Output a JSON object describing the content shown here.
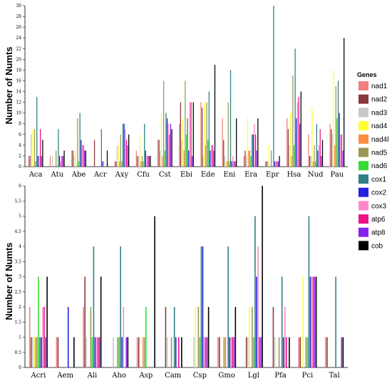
{
  "legend": {
    "title": "Genes",
    "genes": [
      {
        "name": "nad1",
        "color": "#f08080"
      },
      {
        "name": "nad2",
        "color": "#8b3a3a"
      },
      {
        "name": "nad3",
        "color": "#c8c8c8"
      },
      {
        "name": "nad4",
        "color": "#ffff33"
      },
      {
        "name": "nad4l",
        "color": "#ff8c40"
      },
      {
        "name": "nad5",
        "color": "#999955"
      },
      {
        "name": "nad6",
        "color": "#33dd33"
      },
      {
        "name": "cox1",
        "color": "#2f7f86"
      },
      {
        "name": "cox2",
        "color": "#2222dd"
      },
      {
        "name": "cox3",
        "color": "#ff88c8"
      },
      {
        "name": "atp6",
        "color": "#ee1188"
      },
      {
        "name": "atp8",
        "color": "#8822ee"
      },
      {
        "name": "cob",
        "color": "#000000"
      }
    ]
  },
  "chart_data": [
    {
      "type": "bar",
      "ylabel": "Number of Numts",
      "ylim": [
        0,
        30
      ],
      "yticks": [
        0,
        2,
        4,
        6,
        8,
        10,
        12,
        14,
        16,
        18,
        20,
        22,
        24,
        26,
        28,
        30
      ],
      "categories": [
        "Aca",
        "Atu",
        "Abe",
        "Acr",
        "Axy",
        "Cfu",
        "Cst",
        "Ebi",
        "Ede",
        "Eni",
        "Era",
        "Epr",
        "Hsa",
        "Nud",
        "Pau"
      ],
      "series": [
        {
          "name": "nad1",
          "values": [
            2,
            2,
            3,
            0,
            1,
            3,
            5,
            8,
            12,
            9,
            2,
            1,
            9,
            6,
            8
          ]
        },
        {
          "name": "nad2",
          "values": [
            2,
            0,
            3,
            5,
            1,
            2,
            5,
            12,
            11,
            5,
            3,
            1,
            7,
            2,
            7
          ]
        },
        {
          "name": "nad3",
          "values": [
            6,
            2,
            2,
            0,
            4,
            2,
            3,
            5,
            2,
            2,
            2,
            1,
            4,
            2,
            6
          ]
        },
        {
          "name": "nad4",
          "values": [
            7,
            0,
            3,
            0,
            4,
            6,
            10,
            9,
            12,
            1,
            9,
            4,
            10,
            11,
            18
          ]
        },
        {
          "name": "nad4l",
          "values": [
            0,
            0,
            0,
            0,
            1,
            1,
            2,
            3,
            4,
            1,
            3,
            0,
            2,
            1,
            4
          ]
        },
        {
          "name": "nad5",
          "values": [
            7,
            3,
            9,
            0,
            6,
            2,
            16,
            16,
            12,
            12,
            3,
            3,
            17,
            4,
            15
          ]
        },
        {
          "name": "nad6",
          "values": [
            1,
            0,
            1,
            0,
            1,
            1,
            3,
            6,
            5,
            1,
            2,
            0,
            4,
            1,
            9
          ]
        },
        {
          "name": "cox1",
          "values": [
            13,
            7,
            10,
            7,
            8,
            8,
            10,
            9,
            14,
            18,
            6,
            30,
            22,
            8,
            16
          ]
        },
        {
          "name": "cox2",
          "values": [
            2,
            2,
            5,
            1,
            8,
            3,
            9,
            3,
            3,
            1,
            6,
            1,
            9,
            3,
            10
          ]
        },
        {
          "name": "cox3",
          "values": [
            2,
            1,
            4,
            1,
            7,
            2,
            8,
            12,
            4,
            2,
            8,
            1,
            12,
            4,
            6
          ]
        },
        {
          "name": "atp6",
          "values": [
            7,
            2,
            4,
            0,
            5,
            2,
            6,
            12,
            4,
            1,
            6,
            1,
            13,
            7,
            6
          ]
        },
        {
          "name": "atp8",
          "values": [
            2,
            2,
            3,
            0,
            4,
            2,
            8,
            2,
            3,
            1,
            3,
            1,
            8,
            2,
            3
          ]
        },
        {
          "name": "cob",
          "values": [
            5,
            3,
            3,
            3,
            6,
            2,
            7,
            12,
            19,
            9,
            9,
            2,
            14,
            5,
            24
          ]
        }
      ]
    },
    {
      "type": "bar",
      "ylabel": "Number of Numts",
      "ylim": [
        0,
        6
      ],
      "yticks": [
        0,
        0.5,
        1,
        1.5,
        2,
        2.5,
        3,
        3.5,
        4,
        4.5,
        5,
        5.5,
        6
      ],
      "categories": [
        "Acri",
        "Aem",
        "Ali",
        "Aho",
        "Asp",
        "Cam",
        "Csp",
        "Gmo",
        "Lgl",
        "Pfa",
        "Pci",
        "Tal"
      ],
      "series": [
        {
          "name": "nad1",
          "values": [
            2,
            1,
            2,
            0,
            1,
            0,
            0,
            1,
            0,
            0,
            1,
            1
          ]
        },
        {
          "name": "nad2",
          "values": [
            1,
            1,
            3,
            0,
            1,
            2,
            0,
            1,
            1,
            2,
            1,
            1
          ]
        },
        {
          "name": "nad3",
          "values": [
            1,
            0,
            1,
            1,
            0,
            1,
            1,
            0,
            1,
            1,
            0,
            0
          ]
        },
        {
          "name": "nad4",
          "values": [
            1,
            0,
            0,
            0,
            0,
            0,
            2,
            0,
            2,
            0,
            3,
            0
          ]
        },
        {
          "name": "nad4l",
          "values": [
            1,
            0,
            0,
            0,
            1,
            0,
            0,
            1,
            0,
            0,
            0,
            0
          ]
        },
        {
          "name": "nad5",
          "values": [
            1,
            0,
            2,
            1,
            1,
            1,
            2,
            1,
            2,
            1,
            1,
            0
          ]
        },
        {
          "name": "nad6",
          "values": [
            3,
            0,
            1,
            1,
            2,
            0,
            1,
            0,
            1,
            0,
            1,
            0
          ]
        },
        {
          "name": "cox1",
          "values": [
            1,
            0,
            4,
            4,
            0,
            2,
            4,
            4,
            5,
            3,
            5,
            3
          ]
        },
        {
          "name": "cox2",
          "values": [
            1,
            2,
            1,
            1,
            0,
            1,
            4,
            1,
            3,
            1,
            3,
            0
          ]
        },
        {
          "name": "cox3",
          "values": [
            2,
            0,
            1,
            2,
            0,
            0,
            1,
            1,
            4,
            2,
            3,
            0
          ]
        },
        {
          "name": "atp6",
          "values": [
            2,
            0,
            1,
            0,
            0,
            1,
            1,
            1,
            1,
            1,
            3,
            0
          ]
        },
        {
          "name": "atp8",
          "values": [
            1,
            0,
            1,
            1,
            0,
            0,
            1,
            1,
            1,
            0,
            3,
            1
          ]
        },
        {
          "name": "cob",
          "values": [
            3,
            1,
            3,
            1,
            5,
            1,
            2,
            2,
            6,
            1,
            3,
            1
          ]
        }
      ]
    }
  ]
}
